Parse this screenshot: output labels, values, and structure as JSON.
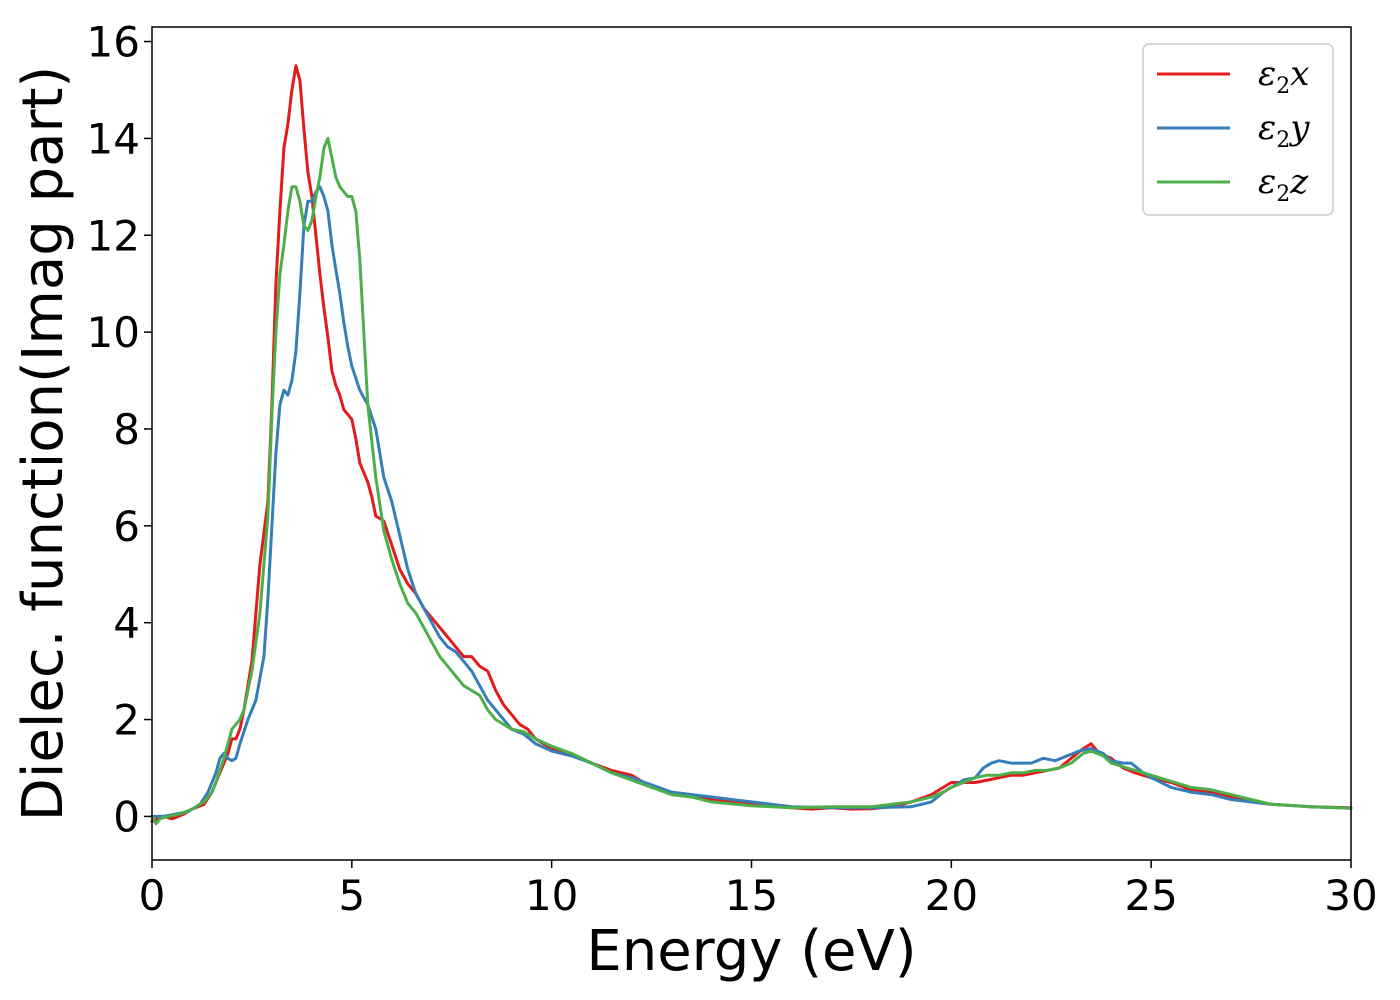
{
  "chart_data": {
    "type": "line",
    "title": "",
    "xlabel": "Energy (eV)",
    "ylabel": "Dielec. function(Imag part)",
    "xlim": [
      0,
      30
    ],
    "ylim": [
      -0.9,
      16.3
    ],
    "xticks": [
      0,
      5,
      10,
      15,
      20,
      25,
      30
    ],
    "yticks": [
      0,
      2,
      4,
      6,
      8,
      10,
      12,
      14,
      16
    ],
    "grid": false,
    "legend_position": "top-right",
    "series": [
      {
        "name": "ε2x",
        "legend_base": "ε",
        "legend_sub": "2",
        "legend_var": "x",
        "color": "#e41a1c",
        "points": [
          [
            0,
            -0.1
          ],
          [
            0.3,
            0.0
          ],
          [
            0.5,
            -0.05
          ],
          [
            0.8,
            0.05
          ],
          [
            1.0,
            0.15
          ],
          [
            1.3,
            0.25
          ],
          [
            1.5,
            0.5
          ],
          [
            1.7,
            0.9
          ],
          [
            1.9,
            1.3
          ],
          [
            2.0,
            1.6
          ],
          [
            2.1,
            1.6
          ],
          [
            2.2,
            1.8
          ],
          [
            2.3,
            2.2
          ],
          [
            2.5,
            3.2
          ],
          [
            2.7,
            5.2
          ],
          [
            2.9,
            6.5
          ],
          [
            3.0,
            8.5
          ],
          [
            3.1,
            11.0
          ],
          [
            3.2,
            12.5
          ],
          [
            3.3,
            13.8
          ],
          [
            3.4,
            14.3
          ],
          [
            3.5,
            15.0
          ],
          [
            3.6,
            15.5
          ],
          [
            3.7,
            15.2
          ],
          [
            3.8,
            14.2
          ],
          [
            3.9,
            13.3
          ],
          [
            4.0,
            12.8
          ],
          [
            4.1,
            12.0
          ],
          [
            4.2,
            11.2
          ],
          [
            4.3,
            10.5
          ],
          [
            4.4,
            9.9
          ],
          [
            4.5,
            9.2
          ],
          [
            4.6,
            8.9
          ],
          [
            4.7,
            8.7
          ],
          [
            4.8,
            8.4
          ],
          [
            5.0,
            8.2
          ],
          [
            5.1,
            7.8
          ],
          [
            5.2,
            7.3
          ],
          [
            5.3,
            7.1
          ],
          [
            5.4,
            6.9
          ],
          [
            5.5,
            6.6
          ],
          [
            5.6,
            6.2
          ],
          [
            5.8,
            6.1
          ],
          [
            6.0,
            5.6
          ],
          [
            6.2,
            5.1
          ],
          [
            6.4,
            4.8
          ],
          [
            6.6,
            4.6
          ],
          [
            6.8,
            4.3
          ],
          [
            7.0,
            4.1
          ],
          [
            7.2,
            3.9
          ],
          [
            7.4,
            3.7
          ],
          [
            7.6,
            3.5
          ],
          [
            7.8,
            3.3
          ],
          [
            8.0,
            3.3
          ],
          [
            8.2,
            3.1
          ],
          [
            8.4,
            3.0
          ],
          [
            8.6,
            2.6
          ],
          [
            8.8,
            2.3
          ],
          [
            9.0,
            2.1
          ],
          [
            9.2,
            1.9
          ],
          [
            9.4,
            1.8
          ],
          [
            9.6,
            1.6
          ],
          [
            9.8,
            1.5
          ],
          [
            10.0,
            1.4
          ],
          [
            10.5,
            1.3
          ],
          [
            11.0,
            1.1
          ],
          [
            11.5,
            0.95
          ],
          [
            12.0,
            0.85
          ],
          [
            12.5,
            0.6
          ],
          [
            13.0,
            0.5
          ],
          [
            13.5,
            0.45
          ],
          [
            14.0,
            0.35
          ],
          [
            15.0,
            0.25
          ],
          [
            16.0,
            0.18
          ],
          [
            16.5,
            0.15
          ],
          [
            17.0,
            0.18
          ],
          [
            17.5,
            0.15
          ],
          [
            18.0,
            0.16
          ],
          [
            18.5,
            0.2
          ],
          [
            19.0,
            0.3
          ],
          [
            19.5,
            0.45
          ],
          [
            19.8,
            0.6
          ],
          [
            20.0,
            0.7
          ],
          [
            20.3,
            0.7
          ],
          [
            20.6,
            0.7
          ],
          [
            20.9,
            0.75
          ],
          [
            21.2,
            0.8
          ],
          [
            21.5,
            0.85
          ],
          [
            21.8,
            0.85
          ],
          [
            22.1,
            0.9
          ],
          [
            22.4,
            0.95
          ],
          [
            22.7,
            1.0
          ],
          [
            23.0,
            1.2
          ],
          [
            23.3,
            1.4
          ],
          [
            23.5,
            1.5
          ],
          [
            23.7,
            1.3
          ],
          [
            24.0,
            1.2
          ],
          [
            24.3,
            1.0
          ],
          [
            24.6,
            0.9
          ],
          [
            25.0,
            0.8
          ],
          [
            25.5,
            0.7
          ],
          [
            26.0,
            0.55
          ],
          [
            26.5,
            0.5
          ],
          [
            27.0,
            0.4
          ],
          [
            27.5,
            0.3
          ],
          [
            28.0,
            0.25
          ],
          [
            29.0,
            0.2
          ],
          [
            30.0,
            0.18
          ]
        ]
      },
      {
        "name": "ε2y",
        "legend_base": "ε",
        "legend_sub": "2",
        "legend_var": "y",
        "color": "#377eb8",
        "points": [
          [
            0,
            0.0
          ],
          [
            0.3,
            0.0
          ],
          [
            0.6,
            0.05
          ],
          [
            0.9,
            0.1
          ],
          [
            1.2,
            0.25
          ],
          [
            1.4,
            0.5
          ],
          [
            1.6,
            0.9
          ],
          [
            1.7,
            1.2
          ],
          [
            1.8,
            1.3
          ],
          [
            1.9,
            1.2
          ],
          [
            2.0,
            1.15
          ],
          [
            2.1,
            1.2
          ],
          [
            2.2,
            1.5
          ],
          [
            2.4,
            2.0
          ],
          [
            2.6,
            2.4
          ],
          [
            2.8,
            3.3
          ],
          [
            2.9,
            4.5
          ],
          [
            3.0,
            6.0
          ],
          [
            3.1,
            7.5
          ],
          [
            3.2,
            8.5
          ],
          [
            3.3,
            8.8
          ],
          [
            3.4,
            8.7
          ],
          [
            3.5,
            9.0
          ],
          [
            3.6,
            9.6
          ],
          [
            3.7,
            10.8
          ],
          [
            3.8,
            12.2
          ],
          [
            3.9,
            12.7
          ],
          [
            4.0,
            12.7
          ],
          [
            4.1,
            12.9
          ],
          [
            4.2,
            13.0
          ],
          [
            4.3,
            12.8
          ],
          [
            4.4,
            12.5
          ],
          [
            4.5,
            11.8
          ],
          [
            4.6,
            11.3
          ],
          [
            4.7,
            10.8
          ],
          [
            4.8,
            10.2
          ],
          [
            4.9,
            9.7
          ],
          [
            5.0,
            9.3
          ],
          [
            5.2,
            8.8
          ],
          [
            5.4,
            8.5
          ],
          [
            5.6,
            8.0
          ],
          [
            5.8,
            7.0
          ],
          [
            6.0,
            6.5
          ],
          [
            6.2,
            5.8
          ],
          [
            6.4,
            5.1
          ],
          [
            6.6,
            4.6
          ],
          [
            6.8,
            4.3
          ],
          [
            7.0,
            4.0
          ],
          [
            7.2,
            3.7
          ],
          [
            7.4,
            3.5
          ],
          [
            7.6,
            3.4
          ],
          [
            7.8,
            3.2
          ],
          [
            8.0,
            3.0
          ],
          [
            8.2,
            2.7
          ],
          [
            8.4,
            2.4
          ],
          [
            8.6,
            2.2
          ],
          [
            8.8,
            2.0
          ],
          [
            9.0,
            1.8
          ],
          [
            9.3,
            1.7
          ],
          [
            9.6,
            1.5
          ],
          [
            10.0,
            1.35
          ],
          [
            10.5,
            1.25
          ],
          [
            11.0,
            1.1
          ],
          [
            11.5,
            0.9
          ],
          [
            12.0,
            0.8
          ],
          [
            12.5,
            0.65
          ],
          [
            13.0,
            0.5
          ],
          [
            13.5,
            0.45
          ],
          [
            14.0,
            0.4
          ],
          [
            14.5,
            0.35
          ],
          [
            15.0,
            0.3
          ],
          [
            16.0,
            0.2
          ],
          [
            17.0,
            0.18
          ],
          [
            18.0,
            0.18
          ],
          [
            19.0,
            0.2
          ],
          [
            19.5,
            0.3
          ],
          [
            19.8,
            0.5
          ],
          [
            20.0,
            0.6
          ],
          [
            20.3,
            0.75
          ],
          [
            20.6,
            0.8
          ],
          [
            20.8,
            1.0
          ],
          [
            21.0,
            1.1
          ],
          [
            21.2,
            1.15
          ],
          [
            21.5,
            1.1
          ],
          [
            21.8,
            1.1
          ],
          [
            22.0,
            1.1
          ],
          [
            22.3,
            1.2
          ],
          [
            22.6,
            1.15
          ],
          [
            22.9,
            1.25
          ],
          [
            23.2,
            1.35
          ],
          [
            23.5,
            1.4
          ],
          [
            23.8,
            1.3
          ],
          [
            24.0,
            1.15
          ],
          [
            24.3,
            1.1
          ],
          [
            24.5,
            1.1
          ],
          [
            24.8,
            0.9
          ],
          [
            25.0,
            0.8
          ],
          [
            25.5,
            0.6
          ],
          [
            26.0,
            0.5
          ],
          [
            26.5,
            0.45
          ],
          [
            27.0,
            0.35
          ],
          [
            27.5,
            0.3
          ],
          [
            28.0,
            0.25
          ],
          [
            29.0,
            0.2
          ],
          [
            30.0,
            0.17
          ]
        ]
      },
      {
        "name": "ε2z",
        "legend_base": "ε",
        "legend_sub": "2",
        "legend_var": "z",
        "color": "#4daf4a",
        "points": [
          [
            0,
            0.0
          ],
          [
            0.1,
            -0.15
          ],
          [
            0.2,
            -0.05
          ],
          [
            0.4,
            0.0
          ],
          [
            0.7,
            0.05
          ],
          [
            1.0,
            0.15
          ],
          [
            1.3,
            0.3
          ],
          [
            1.5,
            0.5
          ],
          [
            1.6,
            0.7
          ],
          [
            1.8,
            1.2
          ],
          [
            1.9,
            1.5
          ],
          [
            2.0,
            1.8
          ],
          [
            2.1,
            1.9
          ],
          [
            2.2,
            2.0
          ],
          [
            2.3,
            2.2
          ],
          [
            2.5,
            3.0
          ],
          [
            2.7,
            4.2
          ],
          [
            2.9,
            6.2
          ],
          [
            3.0,
            8.3
          ],
          [
            3.1,
            10.0
          ],
          [
            3.2,
            11.2
          ],
          [
            3.3,
            11.8
          ],
          [
            3.4,
            12.5
          ],
          [
            3.5,
            13.0
          ],
          [
            3.6,
            13.0
          ],
          [
            3.7,
            12.7
          ],
          [
            3.8,
            12.2
          ],
          [
            3.9,
            12.1
          ],
          [
            4.0,
            12.3
          ],
          [
            4.1,
            12.8
          ],
          [
            4.2,
            13.2
          ],
          [
            4.3,
            13.8
          ],
          [
            4.4,
            14.0
          ],
          [
            4.5,
            13.6
          ],
          [
            4.6,
            13.2
          ],
          [
            4.7,
            13.0
          ],
          [
            4.8,
            12.9
          ],
          [
            4.9,
            12.8
          ],
          [
            5.0,
            12.8
          ],
          [
            5.1,
            12.5
          ],
          [
            5.2,
            11.5
          ],
          [
            5.3,
            10.0
          ],
          [
            5.4,
            8.5
          ],
          [
            5.6,
            7.0
          ],
          [
            5.8,
            5.9
          ],
          [
            6.0,
            5.3
          ],
          [
            6.2,
            4.8
          ],
          [
            6.4,
            4.4
          ],
          [
            6.6,
            4.2
          ],
          [
            6.8,
            3.9
          ],
          [
            7.0,
            3.6
          ],
          [
            7.2,
            3.3
          ],
          [
            7.4,
            3.1
          ],
          [
            7.6,
            2.9
          ],
          [
            7.8,
            2.7
          ],
          [
            8.0,
            2.6
          ],
          [
            8.2,
            2.5
          ],
          [
            8.4,
            2.2
          ],
          [
            8.6,
            2.0
          ],
          [
            8.8,
            1.9
          ],
          [
            9.0,
            1.8
          ],
          [
            9.3,
            1.75
          ],
          [
            9.6,
            1.6
          ],
          [
            10.0,
            1.45
          ],
          [
            10.5,
            1.3
          ],
          [
            11.0,
            1.1
          ],
          [
            11.5,
            0.9
          ],
          [
            12.0,
            0.75
          ],
          [
            12.5,
            0.6
          ],
          [
            13.0,
            0.45
          ],
          [
            13.5,
            0.4
          ],
          [
            14.0,
            0.3
          ],
          [
            15.0,
            0.22
          ],
          [
            16.0,
            0.18
          ],
          [
            17.0,
            0.2
          ],
          [
            18.0,
            0.2
          ],
          [
            19.0,
            0.3
          ],
          [
            19.5,
            0.4
          ],
          [
            19.8,
            0.5
          ],
          [
            20.0,
            0.6
          ],
          [
            20.3,
            0.7
          ],
          [
            20.6,
            0.8
          ],
          [
            20.9,
            0.85
          ],
          [
            21.2,
            0.85
          ],
          [
            21.5,
            0.9
          ],
          [
            21.8,
            0.9
          ],
          [
            22.1,
            0.95
          ],
          [
            22.4,
            0.95
          ],
          [
            22.7,
            1.0
          ],
          [
            23.0,
            1.1
          ],
          [
            23.3,
            1.3
          ],
          [
            23.5,
            1.35
          ],
          [
            23.8,
            1.25
          ],
          [
            24.0,
            1.1
          ],
          [
            24.4,
            1.0
          ],
          [
            24.8,
            0.9
          ],
          [
            25.2,
            0.8
          ],
          [
            25.6,
            0.7
          ],
          [
            26.0,
            0.6
          ],
          [
            26.5,
            0.55
          ],
          [
            27.0,
            0.45
          ],
          [
            27.5,
            0.35
          ],
          [
            28.0,
            0.25
          ],
          [
            29.0,
            0.2
          ],
          [
            30.0,
            0.17
          ]
        ]
      }
    ]
  }
}
